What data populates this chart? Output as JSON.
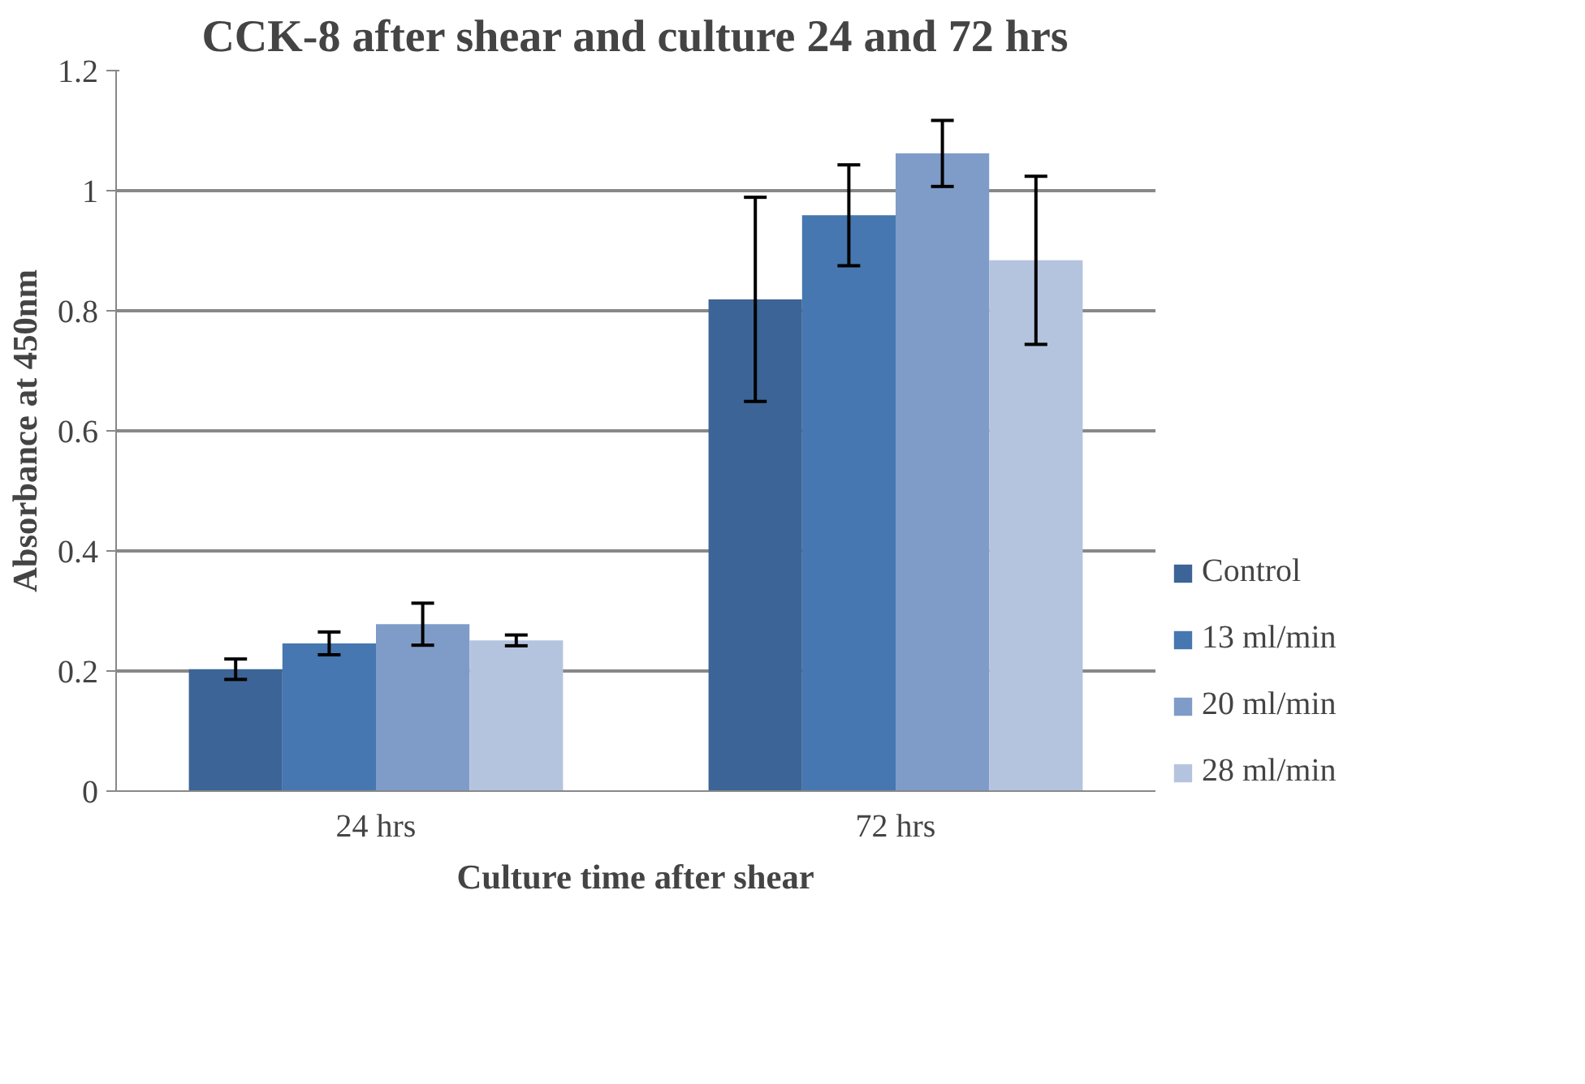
{
  "chart_data": {
    "type": "bar",
    "title": "CCK-8 after shear and culture 24 and 72 hrs",
    "xlabel": "Culture time after shear",
    "ylabel": "Absorbance at 450nm",
    "categories": [
      "24 hrs",
      "72 hrs"
    ],
    "series": [
      {
        "name": "Control",
        "color": "#3d6496",
        "values": [
          0.203,
          0.819
        ],
        "errors": [
          0.017,
          0.17
        ]
      },
      {
        "name": "13 ml/min",
        "color": "#4677b0",
        "values": [
          0.246,
          0.959
        ],
        "errors": [
          0.019,
          0.084
        ]
      },
      {
        "name": "20 ml/min",
        "color": "#7f9cc8",
        "values": [
          0.278,
          1.062
        ],
        "errors": [
          0.035,
          0.055
        ]
      },
      {
        "name": "28 ml/min",
        "color": "#b5c4de",
        "values": [
          0.251,
          0.884
        ],
        "errors": [
          0.009,
          0.14
        ]
      }
    ],
    "ylim": [
      0,
      1.2
    ],
    "yticks": [
      0,
      {
        "value": 0.2,
        "label": "0.2"
      },
      {
        "value": 0.4,
        "label": "0.4"
      },
      {
        "value": 0.6,
        "label": "0.6"
      },
      {
        "value": 0.8,
        "label": "0.8"
      },
      1,
      {
        "value": 1.2,
        "label": "1.2"
      }
    ],
    "grid": "y",
    "legend": "right"
  }
}
